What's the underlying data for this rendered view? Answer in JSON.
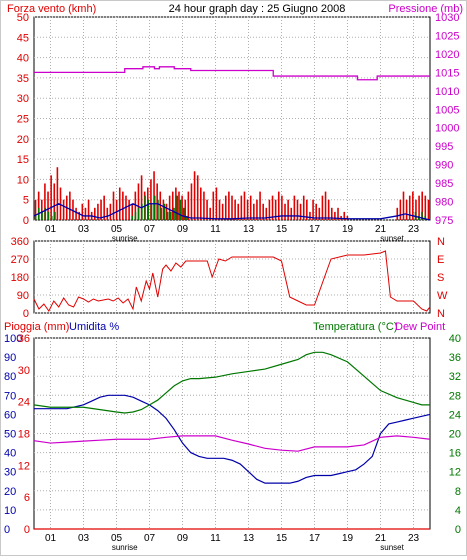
{
  "header": {
    "wind_label": "Forza vento (kmh)",
    "title": "24 hour graph day : 25 Giugno 2008",
    "pressure_label": "Pressione (mb)",
    "rain_label": "Pioggia (mm)",
    "humidity_label": "Umidita %",
    "temp_label": "Temperatura (°C)",
    "dew_label": "Dew Point"
  },
  "colors": {
    "red": "#e00000",
    "magenta": "#cc00cc",
    "blue": "#0000aa",
    "green": "#007700",
    "grid": "#b0b0b0",
    "frame": "#000000"
  },
  "x_ticks": [
    "01",
    "03",
    "05",
    "07",
    "09",
    "11",
    "13",
    "15",
    "17",
    "19",
    "21",
    "23"
  ],
  "sunrise_label": "sunrise",
  "sunset_label": "sunset",
  "chart_data": [
    {
      "type": "bar",
      "id": "wind-pressure",
      "x_range": [
        0,
        24
      ],
      "left_axis": {
        "ticks": [
          0,
          5,
          10,
          15,
          20,
          25,
          30,
          35,
          40,
          45,
          50
        ],
        "ylim": [
          0,
          50
        ],
        "color": "#e00000"
      },
      "right_axis": {
        "ticks": [
          975,
          980,
          985,
          990,
          995,
          1000,
          1005,
          1010,
          1015,
          1020,
          1025,
          1030
        ],
        "ylim": [
          975,
          1030
        ],
        "color": "#cc00cc"
      },
      "series": [
        {
          "color": "#e00000",
          "kind": "bars",
          "axis": "left",
          "values": [
            5,
            7,
            5,
            9,
            7,
            11,
            9,
            13,
            8,
            5,
            6,
            7,
            5,
            3,
            2,
            4,
            3,
            5,
            2,
            3,
            4,
            5,
            6,
            3,
            4,
            7,
            5,
            8,
            7,
            6,
            5,
            4,
            7,
            9,
            11,
            7,
            8,
            10,
            12,
            9,
            7,
            5,
            4,
            6,
            7,
            8,
            7,
            6,
            5,
            7,
            9,
            12,
            11,
            8,
            7,
            5,
            3,
            7,
            8,
            5,
            4,
            6,
            7,
            6,
            5,
            4,
            6,
            7,
            5,
            6,
            4,
            5,
            7,
            4,
            3,
            5,
            6,
            5,
            7,
            6,
            4,
            5,
            3,
            6,
            5,
            4,
            6,
            5,
            2,
            5,
            4,
            3,
            6,
            7,
            5,
            3,
            2,
            3,
            1,
            2,
            1,
            0,
            0,
            0,
            0,
            0,
            0,
            0,
            0,
            0,
            0,
            0,
            0,
            0,
            0,
            0,
            3,
            5,
            7,
            5,
            6,
            7,
            5,
            6,
            7,
            6,
            5
          ]
        },
        {
          "color": "#007700",
          "kind": "bars",
          "axis": "left",
          "values": [
            1,
            3,
            2,
            3,
            2,
            1,
            2,
            0,
            0,
            0,
            0,
            0,
            0,
            0,
            0,
            0,
            0,
            0,
            0,
            0,
            0,
            0,
            0,
            0,
            0,
            0,
            0,
            0,
            0,
            0,
            1,
            2,
            3,
            4,
            6,
            5,
            4,
            6,
            5,
            3,
            4,
            2,
            2,
            3,
            6,
            5,
            3,
            1,
            0,
            0,
            0,
            0,
            0,
            0,
            0,
            0,
            0,
            0,
            0,
            0,
            0,
            0,
            0,
            0,
            0,
            0,
            0,
            0,
            0,
            0,
            0,
            0,
            0,
            0,
            0,
            0,
            0,
            0,
            0,
            0,
            0,
            0,
            0,
            0,
            0,
            0,
            0,
            0,
            0,
            0,
            0,
            0,
            0,
            0,
            0,
            0,
            0,
            0,
            0,
            0,
            0,
            0,
            0,
            0,
            0,
            0,
            0,
            0,
            0,
            0,
            0,
            0,
            0,
            0,
            0,
            0,
            0,
            0,
            2,
            1,
            2,
            1,
            0
          ]
        },
        {
          "color": "#0000aa",
          "kind": "line",
          "axis": "left",
          "x": [
            0,
            0.5,
            1,
            1.5,
            2,
            2.5,
            3,
            3.5,
            4,
            4.5,
            5,
            5.5,
            6,
            6.5,
            7,
            7.5,
            8,
            8.5,
            9,
            9.5,
            10,
            11,
            12,
            13,
            14,
            15,
            16,
            17,
            18,
            19,
            20,
            21,
            22,
            22.5,
            23,
            23.5,
            24
          ],
          "values": [
            1,
            2,
            3,
            4,
            3,
            2,
            1,
            1,
            0.5,
            1,
            2,
            3,
            4,
            3,
            4,
            4,
            3,
            2,
            1,
            0.5,
            0.5,
            0.3,
            0.3,
            0.5,
            0.5,
            1,
            1,
            0.5,
            0.5,
            0.3,
            0.3,
            0.3,
            1,
            1.5,
            1,
            0.5,
            0
          ]
        },
        {
          "color": "#cc00cc",
          "kind": "step",
          "axis": "right",
          "x": [
            0,
            5.3,
            5.5,
            6.3,
            6.6,
            7.3,
            7.6,
            8.5,
            9.5,
            13.5,
            14.5,
            18.4,
            19.6,
            19.9,
            20.8,
            24
          ],
          "values": [
            1015,
            1015,
            1016,
            1016,
            1016.5,
            1016,
            1016.5,
            1016,
            1015.5,
            1015.5,
            1014,
            1014,
            1013,
            1013,
            1014,
            1014
          ]
        }
      ]
    },
    {
      "type": "line",
      "id": "wind-direction",
      "x_range": [
        0,
        24
      ],
      "left_axis": {
        "ticks": [
          0,
          90,
          180,
          270,
          360
        ],
        "ylim": [
          0,
          360
        ],
        "color": "#e00000"
      },
      "right_axis_labels": [
        "N",
        "W",
        "S",
        "E",
        "N"
      ],
      "series": [
        {
          "color": "#e00000",
          "kind": "line",
          "x": [
            0,
            0.3,
            0.6,
            0.9,
            1.2,
            1.5,
            1.8,
            2.1,
            2.4,
            2.7,
            3,
            3.3,
            3.6,
            3.9,
            4.2,
            4.5,
            4.8,
            5.1,
            5.4,
            5.7,
            6,
            6.2,
            6.5,
            6.8,
            7,
            7.2,
            7.5,
            7.8,
            8,
            8.3,
            8.6,
            8.9,
            9.2,
            9.5,
            10.5,
            10.8,
            11.2,
            11.6,
            12,
            13,
            14,
            14.5,
            15,
            15.5,
            16,
            16.5,
            17,
            18,
            19,
            20,
            21,
            21.3,
            21.6,
            22,
            22.5,
            23,
            23.5,
            23.8,
            24
          ],
          "values": [
            70,
            20,
            45,
            10,
            60,
            30,
            75,
            40,
            30,
            80,
            70,
            55,
            70,
            60,
            65,
            70,
            60,
            75,
            50,
            70,
            20,
            130,
            60,
            160,
            120,
            200,
            80,
            220,
            240,
            210,
            250,
            230,
            260,
            260,
            260,
            180,
            270,
            260,
            280,
            280,
            280,
            280,
            260,
            80,
            60,
            40,
            40,
            270,
            290,
            290,
            300,
            310,
            80,
            60,
            60,
            60,
            20,
            10,
            30
          ]
        }
      ]
    },
    {
      "type": "line",
      "id": "temp-humidity",
      "x_range": [
        0,
        24
      ],
      "left_axis": {
        "ticks": [
          0,
          10,
          20,
          30,
          40,
          50,
          60,
          70,
          80,
          90,
          100
        ],
        "ylim": [
          0,
          100
        ],
        "color": "#0000aa"
      },
      "inner_left_axis": {
        "ticks": [
          0,
          6,
          12,
          18,
          24,
          30,
          36
        ],
        "ylim": [
          0,
          36
        ],
        "color": "#e00000"
      },
      "right_axis": {
        "ticks": [
          0,
          4,
          8,
          12,
          16,
          20,
          24,
          28,
          32,
          36,
          40
        ],
        "ylim": [
          0,
          40
        ],
        "color": "#007700"
      },
      "series": [
        {
          "color": "#0000aa",
          "kind": "line",
          "axis": "left",
          "name": "Umidita %",
          "x": [
            0,
            1,
            2,
            3,
            3.5,
            4,
            4.5,
            5,
            5.5,
            6,
            6.5,
            7,
            7.5,
            8,
            8.5,
            9,
            9.5,
            10,
            10.5,
            11,
            11.5,
            12,
            12.5,
            13,
            13.5,
            14,
            14.5,
            15,
            15.5,
            16,
            16.5,
            17,
            17.5,
            18,
            18.5,
            19,
            19.5,
            20,
            20.5,
            21,
            21.5,
            22,
            22.5,
            23,
            23.5,
            24
          ],
          "values": [
            63,
            63,
            63,
            65,
            67,
            69,
            70,
            70,
            70,
            69,
            67,
            65,
            62,
            58,
            52,
            45,
            40,
            38,
            37,
            37,
            37,
            36,
            34,
            30,
            26,
            24,
            24,
            24,
            24,
            25,
            27,
            28,
            28,
            28,
            29,
            30,
            31,
            34,
            38,
            50,
            55,
            56,
            57,
            58,
            59,
            60
          ]
        },
        {
          "color": "#007700",
          "kind": "line",
          "axis": "right",
          "name": "Temperatura",
          "x": [
            0,
            1,
            2,
            3,
            4,
            5,
            5.5,
            6,
            6.5,
            7,
            7.5,
            8,
            8.5,
            9,
            9.5,
            10,
            11,
            12,
            13,
            14,
            15,
            16,
            16.5,
            17,
            17.5,
            18,
            19,
            20,
            21,
            22,
            22.5,
            23,
            23.5,
            24
          ],
          "values": [
            26,
            25.5,
            25.5,
            25.5,
            25,
            24.5,
            24.3,
            24.5,
            25,
            26,
            27,
            28.5,
            30,
            31,
            31.5,
            31.5,
            31.8,
            32.5,
            33,
            33.5,
            34.5,
            35.5,
            36.5,
            37,
            37,
            36.5,
            35,
            32,
            29,
            27.5,
            27,
            26.5,
            26,
            26
          ]
        },
        {
          "color": "#cc00cc",
          "kind": "line",
          "axis": "right",
          "name": "Dew Point",
          "x": [
            0,
            1,
            2,
            3,
            4,
            5,
            6,
            7,
            8,
            9,
            10,
            11,
            12,
            13,
            14,
            15,
            16,
            17,
            18,
            19,
            20,
            21,
            22,
            23,
            24
          ],
          "values": [
            18.5,
            18,
            18.2,
            18.4,
            18.6,
            18.8,
            18.8,
            18.8,
            19.2,
            19.5,
            19.5,
            19.5,
            18.6,
            17.8,
            16.9,
            16.5,
            16.3,
            17.2,
            17.2,
            17.2,
            17.6,
            19.2,
            19.5,
            19.2,
            18.8
          ]
        },
        {
          "color": "#e00000",
          "kind": "line",
          "axis": "inner_left",
          "name": "Pioggia",
          "x": [
            0,
            24
          ],
          "values": [
            0,
            0
          ]
        }
      ]
    }
  ]
}
